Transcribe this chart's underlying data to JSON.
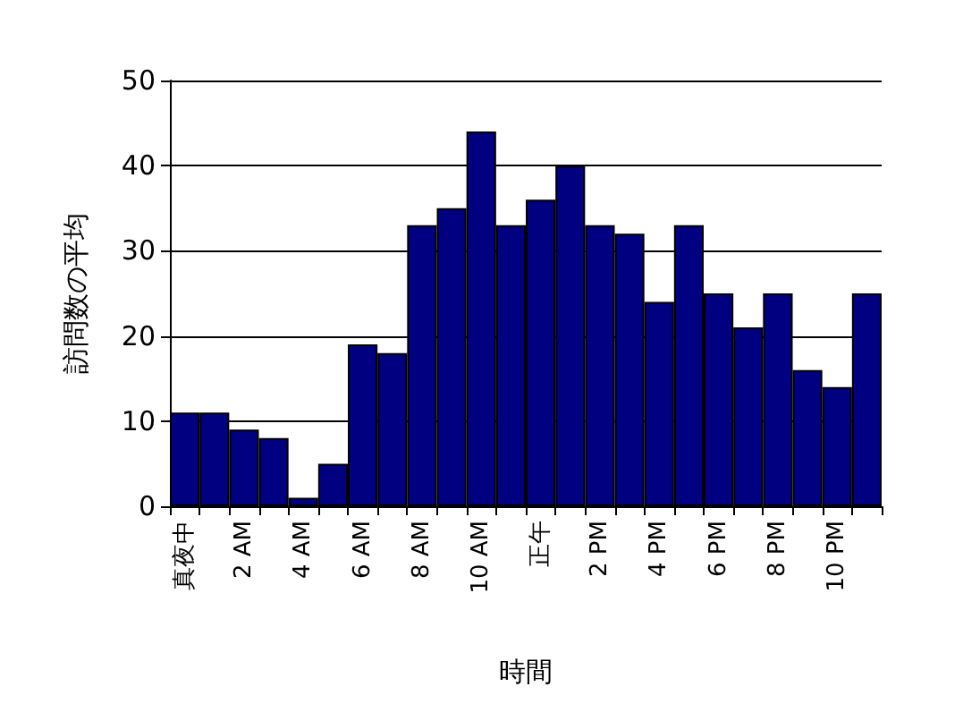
{
  "chart_data": {
    "type": "bar",
    "xlabel": "時間",
    "ylabel": "訪問数の平均",
    "categories": [
      "真夜中",
      null,
      "2 AM",
      null,
      "4 AM",
      null,
      "6 AM",
      null,
      "8 AM",
      null,
      "10 AM",
      null,
      "正午",
      null,
      "2 PM",
      null,
      "4 PM",
      null,
      "6 PM",
      null,
      "8 PM",
      null,
      "10 PM",
      null
    ],
    "values": [
      11,
      11,
      9,
      8,
      1,
      5,
      19,
      18,
      33,
      35,
      44,
      33,
      36,
      40,
      33,
      32,
      24,
      33,
      25,
      21,
      25,
      16,
      14,
      25
    ],
    "color": "#000080",
    "ylim": [
      0,
      50
    ],
    "yticks": [
      0,
      10,
      20,
      30,
      40,
      50
    ],
    "grid": "y"
  }
}
